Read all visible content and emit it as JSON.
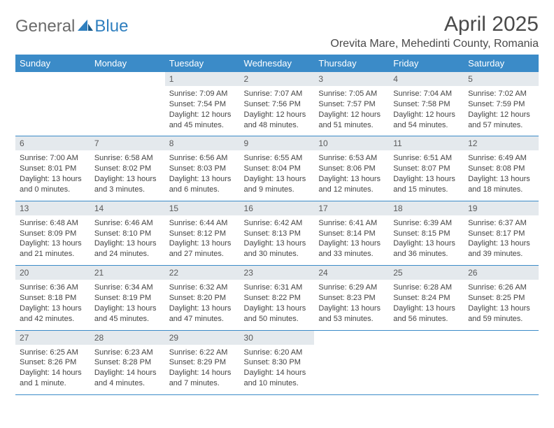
{
  "logo": {
    "part1": "General",
    "part2": "Blue"
  },
  "title": "April 2025",
  "location": "Orevita Mare, Mehedinti County, Romania",
  "colors": {
    "header_bg": "#3b8bc8",
    "header_fg": "#ffffff",
    "daynum_bg": "#e4e9ed",
    "border": "#3b8bc8",
    "logo_gray": "#6b6b6b",
    "logo_blue": "#2f7fbf"
  },
  "day_headers": [
    "Sunday",
    "Monday",
    "Tuesday",
    "Wednesday",
    "Thursday",
    "Friday",
    "Saturday"
  ],
  "weeks": [
    [
      {
        "blank": true
      },
      {
        "blank": true
      },
      {
        "n": "1",
        "sunrise": "7:09 AM",
        "sunset": "7:54 PM",
        "daylight": "12 hours and 45 minutes."
      },
      {
        "n": "2",
        "sunrise": "7:07 AM",
        "sunset": "7:56 PM",
        "daylight": "12 hours and 48 minutes."
      },
      {
        "n": "3",
        "sunrise": "7:05 AM",
        "sunset": "7:57 PM",
        "daylight": "12 hours and 51 minutes."
      },
      {
        "n": "4",
        "sunrise": "7:04 AM",
        "sunset": "7:58 PM",
        "daylight": "12 hours and 54 minutes."
      },
      {
        "n": "5",
        "sunrise": "7:02 AM",
        "sunset": "7:59 PM",
        "daylight": "12 hours and 57 minutes."
      }
    ],
    [
      {
        "n": "6",
        "sunrise": "7:00 AM",
        "sunset": "8:01 PM",
        "daylight": "13 hours and 0 minutes."
      },
      {
        "n": "7",
        "sunrise": "6:58 AM",
        "sunset": "8:02 PM",
        "daylight": "13 hours and 3 minutes."
      },
      {
        "n": "8",
        "sunrise": "6:56 AM",
        "sunset": "8:03 PM",
        "daylight": "13 hours and 6 minutes."
      },
      {
        "n": "9",
        "sunrise": "6:55 AM",
        "sunset": "8:04 PM",
        "daylight": "13 hours and 9 minutes."
      },
      {
        "n": "10",
        "sunrise": "6:53 AM",
        "sunset": "8:06 PM",
        "daylight": "13 hours and 12 minutes."
      },
      {
        "n": "11",
        "sunrise": "6:51 AM",
        "sunset": "8:07 PM",
        "daylight": "13 hours and 15 minutes."
      },
      {
        "n": "12",
        "sunrise": "6:49 AM",
        "sunset": "8:08 PM",
        "daylight": "13 hours and 18 minutes."
      }
    ],
    [
      {
        "n": "13",
        "sunrise": "6:48 AM",
        "sunset": "8:09 PM",
        "daylight": "13 hours and 21 minutes."
      },
      {
        "n": "14",
        "sunrise": "6:46 AM",
        "sunset": "8:10 PM",
        "daylight": "13 hours and 24 minutes."
      },
      {
        "n": "15",
        "sunrise": "6:44 AM",
        "sunset": "8:12 PM",
        "daylight": "13 hours and 27 minutes."
      },
      {
        "n": "16",
        "sunrise": "6:42 AM",
        "sunset": "8:13 PM",
        "daylight": "13 hours and 30 minutes."
      },
      {
        "n": "17",
        "sunrise": "6:41 AM",
        "sunset": "8:14 PM",
        "daylight": "13 hours and 33 minutes."
      },
      {
        "n": "18",
        "sunrise": "6:39 AM",
        "sunset": "8:15 PM",
        "daylight": "13 hours and 36 minutes."
      },
      {
        "n": "19",
        "sunrise": "6:37 AM",
        "sunset": "8:17 PM",
        "daylight": "13 hours and 39 minutes."
      }
    ],
    [
      {
        "n": "20",
        "sunrise": "6:36 AM",
        "sunset": "8:18 PM",
        "daylight": "13 hours and 42 minutes."
      },
      {
        "n": "21",
        "sunrise": "6:34 AM",
        "sunset": "8:19 PM",
        "daylight": "13 hours and 45 minutes."
      },
      {
        "n": "22",
        "sunrise": "6:32 AM",
        "sunset": "8:20 PM",
        "daylight": "13 hours and 47 minutes."
      },
      {
        "n": "23",
        "sunrise": "6:31 AM",
        "sunset": "8:22 PM",
        "daylight": "13 hours and 50 minutes."
      },
      {
        "n": "24",
        "sunrise": "6:29 AM",
        "sunset": "8:23 PM",
        "daylight": "13 hours and 53 minutes."
      },
      {
        "n": "25",
        "sunrise": "6:28 AM",
        "sunset": "8:24 PM",
        "daylight": "13 hours and 56 minutes."
      },
      {
        "n": "26",
        "sunrise": "6:26 AM",
        "sunset": "8:25 PM",
        "daylight": "13 hours and 59 minutes."
      }
    ],
    [
      {
        "n": "27",
        "sunrise": "6:25 AM",
        "sunset": "8:26 PM",
        "daylight": "14 hours and 1 minute."
      },
      {
        "n": "28",
        "sunrise": "6:23 AM",
        "sunset": "8:28 PM",
        "daylight": "14 hours and 4 minutes."
      },
      {
        "n": "29",
        "sunrise": "6:22 AM",
        "sunset": "8:29 PM",
        "daylight": "14 hours and 7 minutes."
      },
      {
        "n": "30",
        "sunrise": "6:20 AM",
        "sunset": "8:30 PM",
        "daylight": "14 hours and 10 minutes."
      },
      {
        "blank": true
      },
      {
        "blank": true
      },
      {
        "blank": true
      }
    ]
  ],
  "labels": {
    "sunrise": "Sunrise: ",
    "sunset": "Sunset: ",
    "daylight": "Daylight: "
  }
}
